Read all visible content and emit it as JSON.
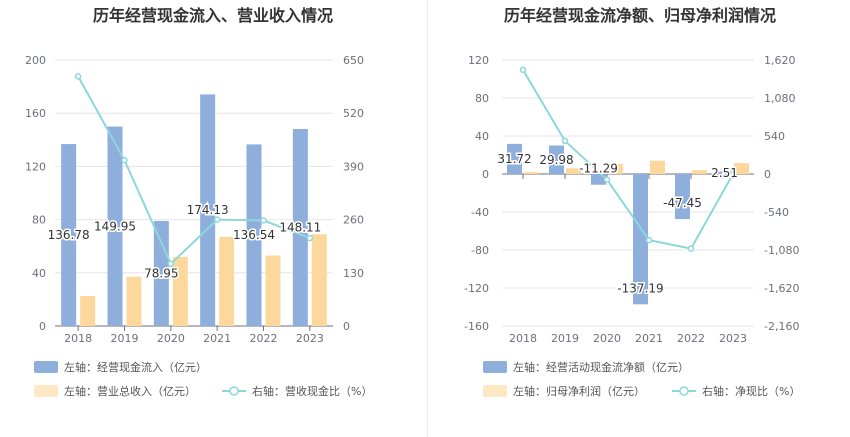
{
  "chart_data": [
    {
      "type": "bar",
      "title": "历年经营现金流入、营业收入情况",
      "categories": [
        "2018",
        "2019",
        "2020",
        "2021",
        "2022",
        "2023"
      ],
      "y_left": {
        "ylim": [
          0,
          200
        ],
        "ticks": [
          "0",
          "40",
          "80",
          "120",
          "160",
          "200"
        ]
      },
      "y_right": {
        "ylim": [
          0,
          650
        ],
        "ticks": [
          "0",
          "130",
          "260",
          "390",
          "520",
          "650"
        ]
      },
      "series": [
        {
          "name": "左轴：经营现金流入（亿元）",
          "kind": "bar",
          "axis": "left",
          "color": "#8eaedb",
          "values": [
            136.78,
            149.95,
            78.95,
            174.13,
            136.54,
            148.11
          ],
          "labels": [
            "136.78",
            "149.95",
            "78.95",
            "174.13",
            "136.54",
            "148.11"
          ]
        },
        {
          "name": "左轴：营业总收入（亿元）",
          "kind": "bar",
          "axis": "left",
          "color": "#fdd89c",
          "values": [
            22.5,
            37,
            52,
            67,
            53,
            69
          ]
        },
        {
          "name": "右轴：营收现金比（%）",
          "kind": "line",
          "axis": "right",
          "color": "#8dd7dc",
          "values": [
            610,
            405,
            152,
            260,
            258,
            215
          ]
        }
      ]
    },
    {
      "type": "bar",
      "title": "历年经营现金流净额、归母净利润情况",
      "categories": [
        "2018",
        "2019",
        "2020",
        "2021",
        "2022",
        "2023"
      ],
      "y_left": {
        "ylim": [
          -160,
          120
        ],
        "ticks": [
          "-160",
          "-120",
          "-80",
          "-40",
          "0",
          "40",
          "80",
          "120"
        ]
      },
      "y_right": {
        "ylim": [
          -2160,
          1620
        ],
        "ticks": [
          "-2,160",
          "-1,620",
          "-1,080",
          "-540",
          "0",
          "540",
          "1,080",
          "1,620"
        ]
      },
      "series": [
        {
          "name": "左轴：经营活动现金流净额（亿元）",
          "kind": "bar",
          "axis": "left",
          "color": "#8eaedb",
          "values": [
            31.72,
            29.98,
            -11.29,
            -137.19,
            -47.45,
            2.51
          ],
          "labels": [
            "31.72",
            "29.98",
            "-11.29",
            "-137.19",
            "-47.45",
            "2.51"
          ]
        },
        {
          "name": "左轴：归母净利润（亿元）",
          "kind": "bar",
          "axis": "left",
          "color": "#fdd89c",
          "values": [
            2,
            6,
            10.5,
            14,
            4,
            11.5
          ]
        },
        {
          "name": "右轴：净现比（%）",
          "kind": "line",
          "axis": "right",
          "color": "#8dd7dc",
          "values": [
            1480,
            470,
            -80,
            -940,
            -1060,
            0
          ]
        }
      ]
    }
  ]
}
